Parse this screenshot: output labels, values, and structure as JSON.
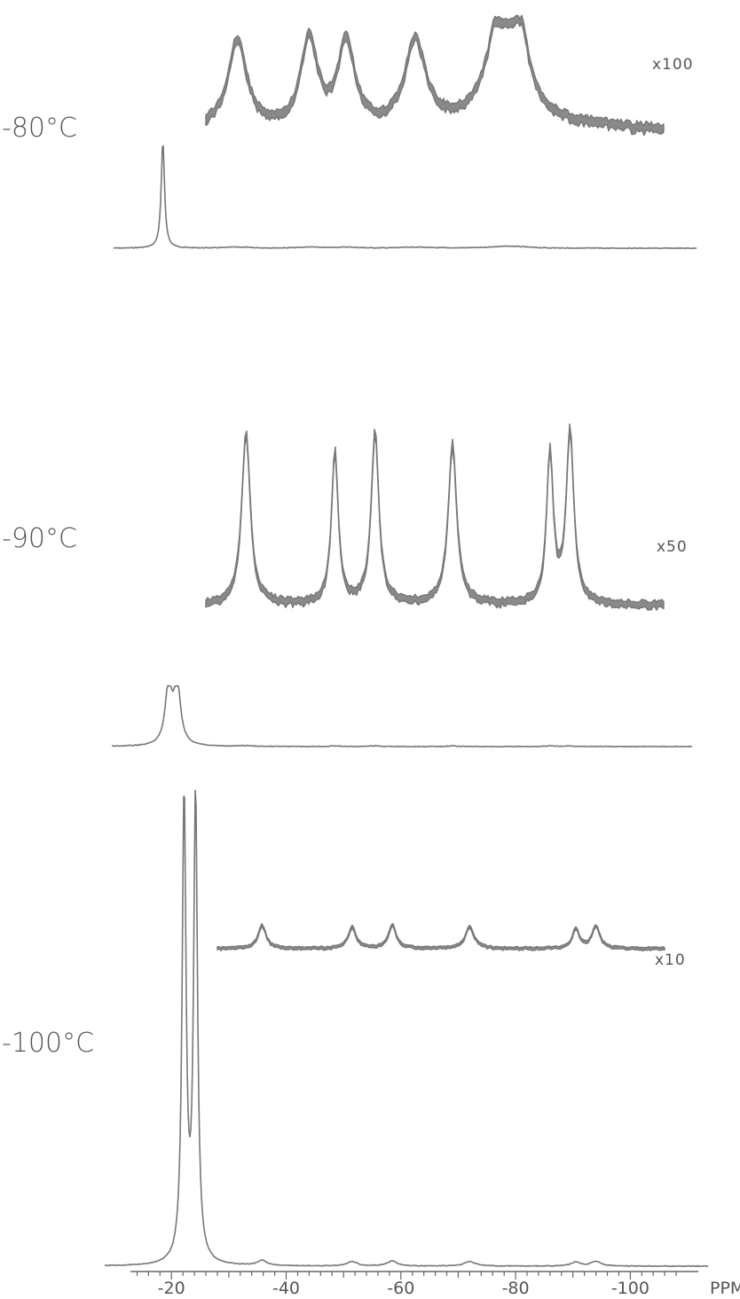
{
  "chart_data": {
    "type": "line",
    "title": "",
    "xlabel": "",
    "ylabel": "",
    "x_unit": "PPM",
    "xlim": [
      -13,
      -110
    ],
    "x_ticks": [
      -20,
      -40,
      -60,
      -80,
      -100
    ],
    "x_tick_labels": [
      "-20",
      "-40",
      "-60",
      "-80",
      "-100"
    ],
    "panels": [
      {
        "temperature": "-80°C",
        "expansion_label": "x100",
        "main_peaks": [
          {
            "ppm": -18.5,
            "height": 1.0,
            "width": 0.35
          }
        ],
        "expansion_range": [
          -26,
          -106
        ],
        "expansion_peaks": [
          {
            "ppm": -31.5,
            "height": 0.85,
            "width": 2.0
          },
          {
            "ppm": -44.0,
            "height": 0.85,
            "width": 1.8
          },
          {
            "ppm": -50.5,
            "height": 0.82,
            "width": 1.8
          },
          {
            "ppm": -62.5,
            "height": 0.82,
            "width": 2.2
          },
          {
            "ppm": -77.5,
            "height": 0.9,
            "width": 2.8
          },
          {
            "ppm": -80.0,
            "height": 0.9,
            "width": 2.2
          }
        ]
      },
      {
        "temperature": "-90°C",
        "expansion_label": "x50",
        "main_peaks": [
          {
            "ppm": -19.5,
            "height": 1.0,
            "width": 0.7
          },
          {
            "ppm": -21.0,
            "height": 1.0,
            "width": 0.7
          }
        ],
        "expansion_range": [
          -26,
          -106
        ],
        "expansion_peaks": [
          {
            "ppm": -33.0,
            "height": 0.95,
            "width": 0.9
          },
          {
            "ppm": -48.5,
            "height": 0.85,
            "width": 0.7
          },
          {
            "ppm": -55.5,
            "height": 0.95,
            "width": 0.8
          },
          {
            "ppm": -69.0,
            "height": 0.88,
            "width": 0.9
          },
          {
            "ppm": -86.0,
            "height": 0.82,
            "width": 0.7
          },
          {
            "ppm": -89.5,
            "height": 0.95,
            "width": 0.8
          }
        ]
      },
      {
        "temperature": "-100°C",
        "expansion_label": "x10",
        "main_peaks": [
          {
            "ppm": -22.2,
            "height": 1.0,
            "width": 0.4
          },
          {
            "ppm": -24.2,
            "height": 1.0,
            "width": 0.4
          }
        ],
        "expansion_range": [
          -28,
          -106
        ],
        "expansion_peaks": [
          {
            "ppm": -35.8,
            "height": 0.88,
            "width": 0.8
          },
          {
            "ppm": -51.5,
            "height": 0.82,
            "width": 0.8
          },
          {
            "ppm": -58.5,
            "height": 0.88,
            "width": 0.8
          },
          {
            "ppm": -72.0,
            "height": 0.82,
            "width": 0.9
          },
          {
            "ppm": -90.5,
            "height": 0.75,
            "width": 0.7
          },
          {
            "ppm": -94.0,
            "height": 0.85,
            "width": 0.8
          }
        ]
      }
    ]
  },
  "colors": {
    "trace": "#777777",
    "noise_band": "#8a8a8a",
    "axis": "#666666",
    "text": "#555555"
  }
}
